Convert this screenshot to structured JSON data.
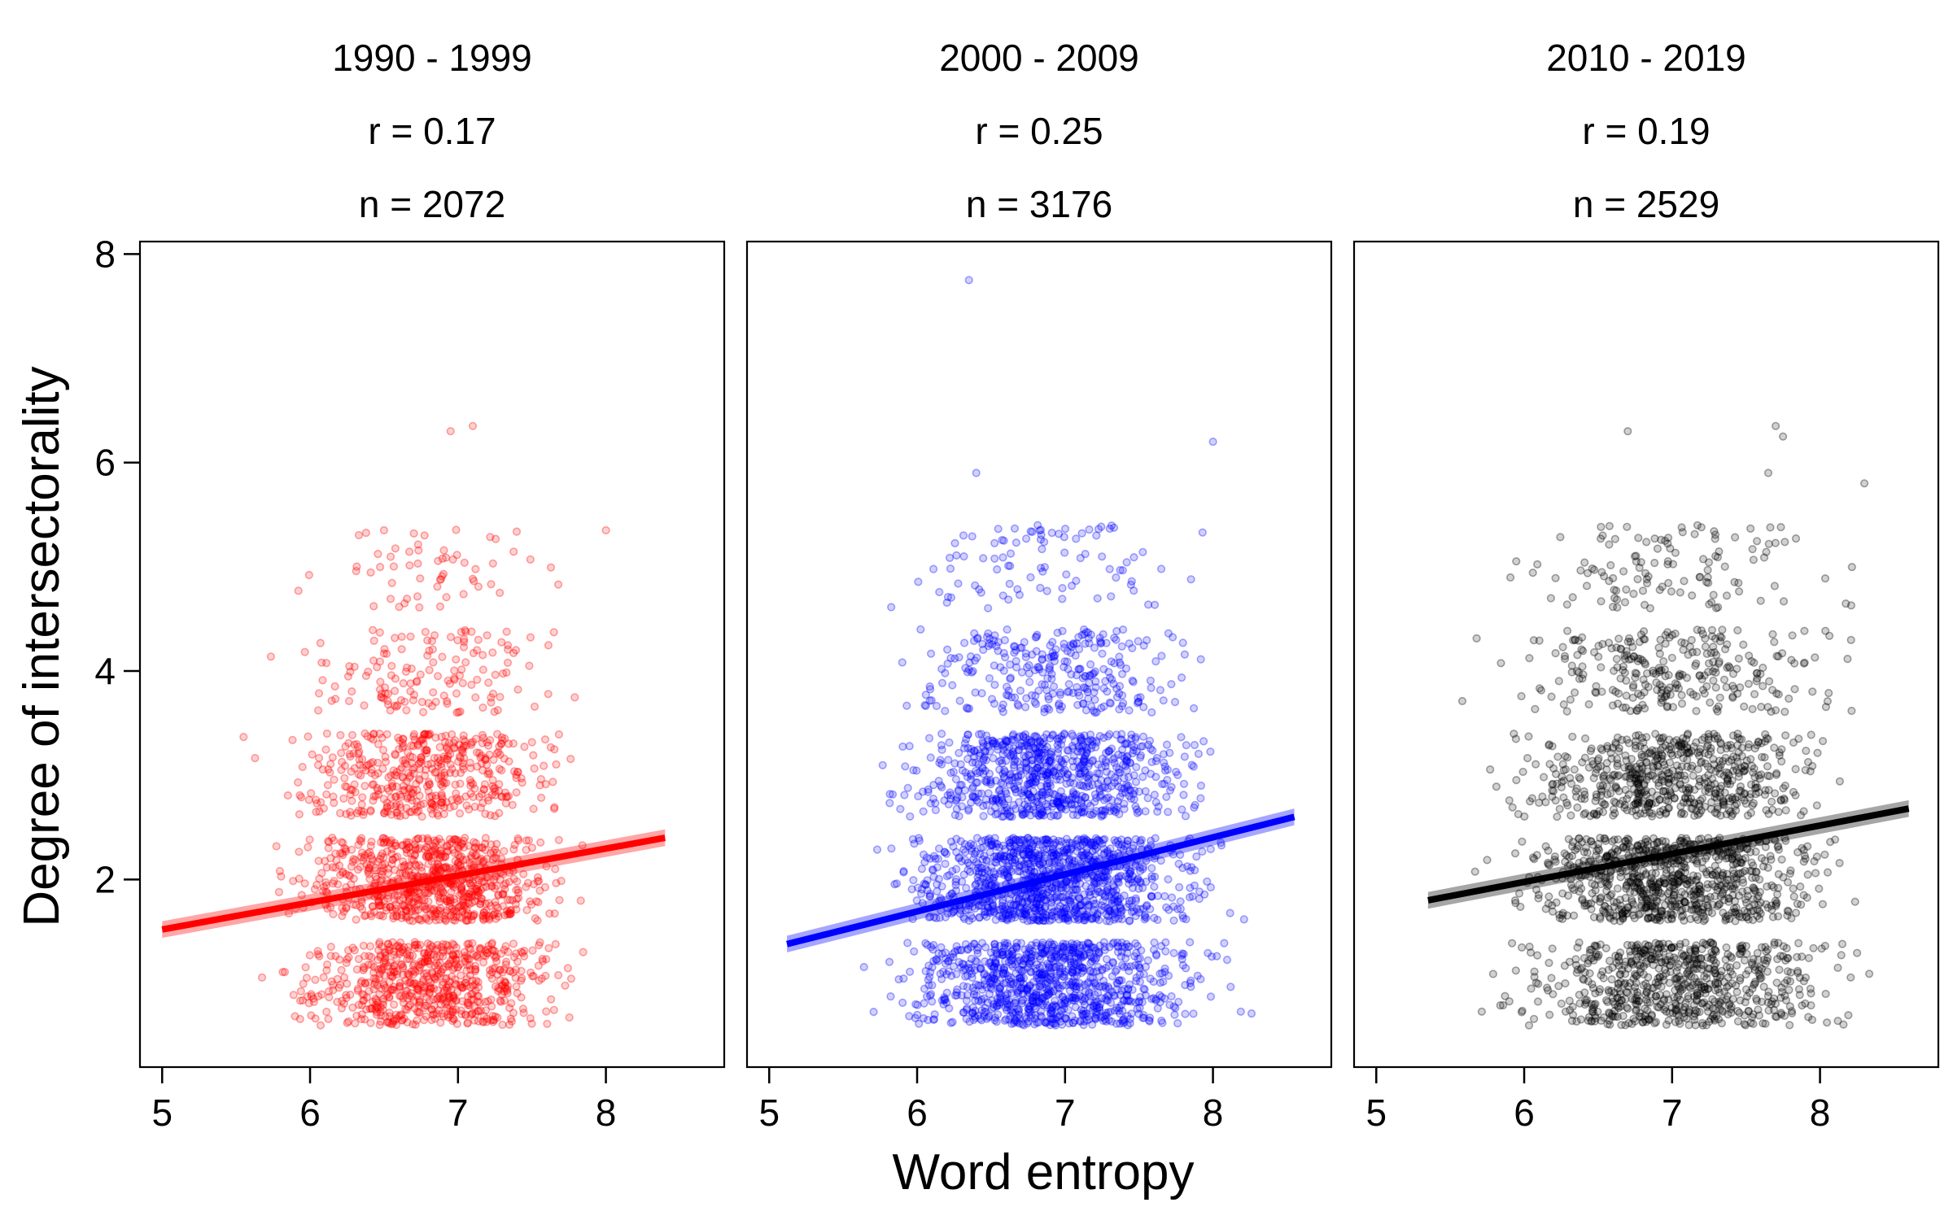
{
  "figure": {
    "xlabel": "Word entropy",
    "ylabel": "Degree of intersectorality"
  },
  "chart_data": [
    {
      "type": "scatter",
      "title": "1990 - 1999",
      "r_label": "r = 0.17",
      "n_label": "n = 2072",
      "n": 2072,
      "color": "#ff0000",
      "xlim": [
        4.85,
        8.8
      ],
      "ylim": [
        0.2,
        8.12
      ],
      "x_ticks": [
        5,
        6,
        7,
        8
      ],
      "y_ticks": [
        2,
        4,
        6,
        8
      ],
      "x_range": [
        5.0,
        8.4
      ],
      "x_center": 6.8,
      "x_spread": 0.55,
      "bands": [
        {
          "y": [
            0.6,
            1.4
          ],
          "share": 0.32
        },
        {
          "y": [
            1.6,
            2.4
          ],
          "share": 0.36
        },
        {
          "y": [
            2.6,
            3.4
          ],
          "share": 0.22
        },
        {
          "y": [
            3.6,
            4.4
          ],
          "share": 0.07
        },
        {
          "y": [
            4.6,
            5.4
          ],
          "share": 0.02
        }
      ],
      "outliers": [
        {
          "x": 6.95,
          "y": 6.3
        },
        {
          "x": 7.1,
          "y": 6.35
        },
        {
          "x": 6.5,
          "y": 5.35
        },
        {
          "x": 8.0,
          "y": 5.35
        }
      ],
      "regression": {
        "x": [
          5.0,
          8.4
        ],
        "y": [
          1.52,
          2.4
        ],
        "ci": 0.08
      }
    },
    {
      "type": "scatter",
      "title": "2000 - 2009",
      "r_label": "r = 0.25",
      "n_label": "n = 3176",
      "n": 3176,
      "color": "#0000ff",
      "xlim": [
        4.85,
        8.8
      ],
      "ylim": [
        0.2,
        8.12
      ],
      "x_ticks": [
        5,
        6,
        7,
        8
      ],
      "y_ticks": [
        2,
        4,
        6,
        8
      ],
      "x_range": [
        5.1,
        8.6
      ],
      "x_center": 6.9,
      "x_spread": 0.6,
      "bands": [
        {
          "y": [
            0.6,
            1.4
          ],
          "share": 0.3
        },
        {
          "y": [
            1.6,
            2.4
          ],
          "share": 0.34
        },
        {
          "y": [
            2.6,
            3.4
          ],
          "share": 0.24
        },
        {
          "y": [
            3.6,
            4.4
          ],
          "share": 0.09
        },
        {
          "y": [
            4.6,
            5.4
          ],
          "share": 0.03
        }
      ],
      "outliers": [
        {
          "x": 6.35,
          "y": 7.75
        },
        {
          "x": 6.4,
          "y": 5.9
        },
        {
          "x": 8.0,
          "y": 6.2
        }
      ],
      "regression": {
        "x": [
          5.12,
          8.55
        ],
        "y": [
          1.38,
          2.6
        ],
        "ci": 0.08
      }
    },
    {
      "type": "scatter",
      "title": "2010 - 2019",
      "r_label": "r = 0.19",
      "n_label": "n = 2529",
      "n": 2529,
      "color": "#000000",
      "xlim": [
        4.85,
        8.8
      ],
      "ylim": [
        0.2,
        8.12
      ],
      "x_ticks": [
        5,
        6,
        7,
        8
      ],
      "y_ticks": [
        2,
        4,
        6,
        8
      ],
      "x_range": [
        5.35,
        8.65
      ],
      "x_center": 7.0,
      "x_spread": 0.65,
      "bands": [
        {
          "y": [
            0.6,
            1.4
          ],
          "share": 0.27
        },
        {
          "y": [
            1.6,
            2.4
          ],
          "share": 0.33
        },
        {
          "y": [
            2.6,
            3.4
          ],
          "share": 0.24
        },
        {
          "y": [
            3.6,
            4.4
          ],
          "share": 0.11
        },
        {
          "y": [
            4.6,
            5.4
          ],
          "share": 0.05
        }
      ],
      "outliers": [
        {
          "x": 6.7,
          "y": 6.3
        },
        {
          "x": 7.7,
          "y": 6.35
        },
        {
          "x": 7.75,
          "y": 6.25
        },
        {
          "x": 7.65,
          "y": 5.9
        },
        {
          "x": 8.3,
          "y": 5.8
        }
      ],
      "regression": {
        "x": [
          5.35,
          8.6
        ],
        "y": [
          1.8,
          2.68
        ],
        "ci": 0.08
      }
    }
  ]
}
